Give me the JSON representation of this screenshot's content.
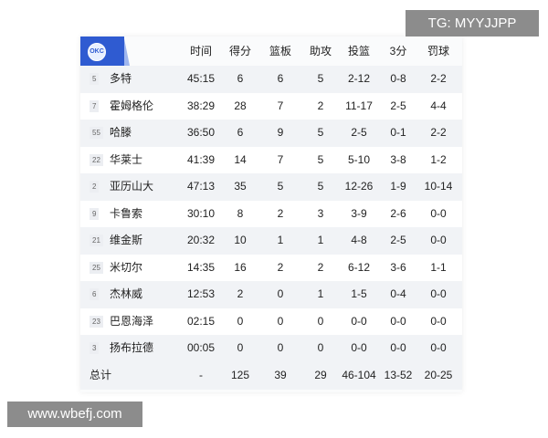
{
  "watermark_top": "TG: MYYJJPP",
  "watermark_bottom": "www.wbefj.com",
  "team_logo": "OKC",
  "colors": {
    "brand": "#2f5bd1"
  },
  "headers": [
    "时间",
    "得分",
    "篮板",
    "助攻",
    "投篮",
    "3分",
    "罚球"
  ],
  "players": [
    {
      "num": "5",
      "name": "多特",
      "stats": [
        "45:15",
        "6",
        "6",
        "5",
        "2-12",
        "0-8",
        "2-2"
      ]
    },
    {
      "num": "7",
      "name": "霍姆格伦",
      "stats": [
        "38:29",
        "28",
        "7",
        "2",
        "11-17",
        "2-5",
        "4-4"
      ]
    },
    {
      "num": "55",
      "name": "哈滕",
      "stats": [
        "36:50",
        "6",
        "9",
        "5",
        "2-5",
        "0-1",
        "2-2"
      ]
    },
    {
      "num": "22",
      "name": "华莱士",
      "stats": [
        "41:39",
        "14",
        "7",
        "5",
        "5-10",
        "3-8",
        "1-2"
      ]
    },
    {
      "num": "2",
      "name": "亚历山大",
      "stats": [
        "47:13",
        "35",
        "5",
        "5",
        "12-26",
        "1-9",
        "10-14"
      ]
    },
    {
      "num": "9",
      "name": "卡鲁索",
      "stats": [
        "30:10",
        "8",
        "2",
        "3",
        "3-9",
        "2-6",
        "0-0"
      ]
    },
    {
      "num": "21",
      "name": "维金斯",
      "stats": [
        "20:32",
        "10",
        "1",
        "1",
        "4-8",
        "2-5",
        "0-0"
      ]
    },
    {
      "num": "25",
      "name": "米切尔",
      "stats": [
        "14:35",
        "16",
        "2",
        "2",
        "6-12",
        "3-6",
        "1-1"
      ]
    },
    {
      "num": "6",
      "name": "杰林威",
      "stats": [
        "12:53",
        "2",
        "0",
        "1",
        "1-5",
        "0-4",
        "0-0"
      ]
    },
    {
      "num": "23",
      "name": "巴恩海泽",
      "stats": [
        "02:15",
        "0",
        "0",
        "0",
        "0-0",
        "0-0",
        "0-0"
      ]
    },
    {
      "num": "3",
      "name": "扬布拉德",
      "stats": [
        "00:05",
        "0",
        "0",
        "0",
        "0-0",
        "0-0",
        "0-0"
      ]
    }
  ],
  "total": {
    "label": "总计",
    "stats": [
      "-",
      "125",
      "39",
      "29",
      "46-104",
      "13-52",
      "20-25"
    ]
  }
}
